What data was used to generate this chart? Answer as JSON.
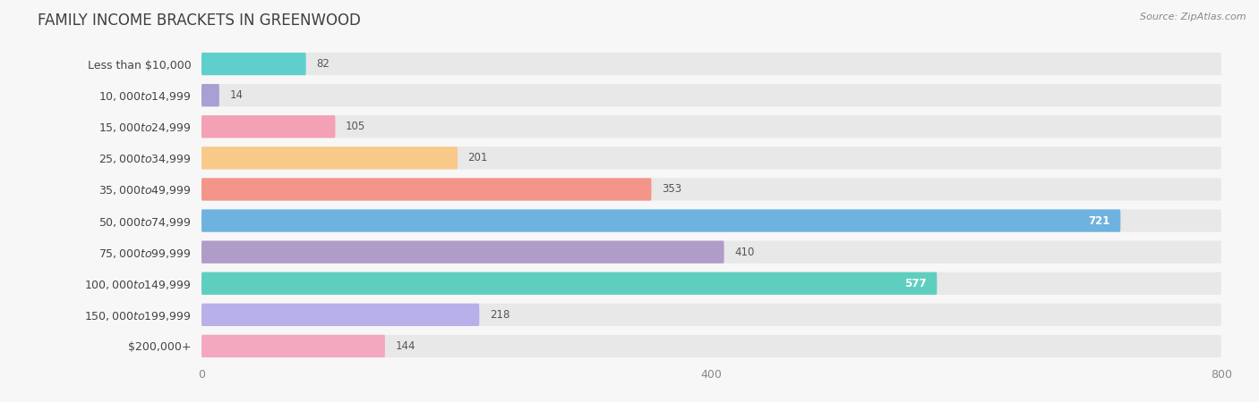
{
  "title": "FAMILY INCOME BRACKETS IN GREENWOOD",
  "source": "Source: ZipAtlas.com",
  "categories": [
    "Less than $10,000",
    "$10,000 to $14,999",
    "$15,000 to $24,999",
    "$25,000 to $34,999",
    "$35,000 to $49,999",
    "$50,000 to $74,999",
    "$75,000 to $99,999",
    "$100,000 to $149,999",
    "$150,000 to $199,999",
    "$200,000+"
  ],
  "values": [
    82,
    14,
    105,
    201,
    353,
    721,
    410,
    577,
    218,
    144
  ],
  "bar_colors": [
    "#5ECFCC",
    "#A89FD4",
    "#F4A0B5",
    "#F9C98A",
    "#F4958A",
    "#6EB3E0",
    "#B09CC8",
    "#5ECFBF",
    "#B8B0E8",
    "#F4A8C0"
  ],
  "value_label_colors": [
    "dark",
    "dark",
    "dark",
    "dark",
    "dark",
    "white",
    "dark",
    "white",
    "dark",
    "dark"
  ],
  "xlim_max": 800,
  "xticks": [
    0,
    400,
    800
  ],
  "background_color": "#f7f7f7",
  "bar_bg_color": "#e8e8e8",
  "title_fontsize": 12,
  "label_fontsize": 9,
  "value_fontsize": 8.5,
  "source_fontsize": 8
}
